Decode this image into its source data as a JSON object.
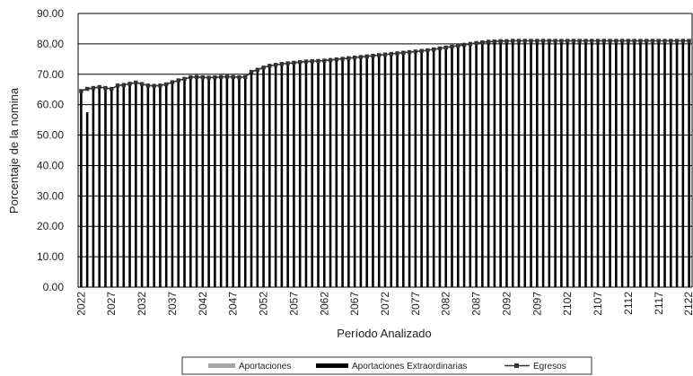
{
  "chart_data": {
    "type": "bar",
    "title": "",
    "xlabel": "Período Analizado",
    "ylabel": "Porcentaje de la nomina",
    "ylim": [
      0,
      90
    ],
    "y_ticks": [
      "0.00",
      "10.00",
      "20.00",
      "30.00",
      "40.00",
      "50.00",
      "60.00",
      "70.00",
      "80.00",
      "90.00"
    ],
    "x_tick_labels": [
      "2022",
      "2027",
      "2032",
      "2037",
      "2042",
      "2047",
      "2052",
      "2057",
      "2062",
      "2067",
      "2072",
      "2077",
      "2082",
      "2087",
      "2092",
      "2097",
      "2102",
      "2107",
      "2112",
      "2117",
      "2122"
    ],
    "x": [
      2022,
      2023,
      2024,
      2025,
      2026,
      2027,
      2028,
      2029,
      2030,
      2031,
      2032,
      2033,
      2034,
      2035,
      2036,
      2037,
      2038,
      2039,
      2040,
      2041,
      2042,
      2043,
      2044,
      2045,
      2046,
      2047,
      2048,
      2049,
      2050,
      2051,
      2052,
      2053,
      2054,
      2055,
      2056,
      2057,
      2058,
      2059,
      2060,
      2061,
      2062,
      2063,
      2064,
      2065,
      2066,
      2067,
      2068,
      2069,
      2070,
      2071,
      2072,
      2073,
      2074,
      2075,
      2076,
      2077,
      2078,
      2079,
      2080,
      2081,
      2082,
      2083,
      2084,
      2085,
      2086,
      2087,
      2088,
      2089,
      2090,
      2091,
      2092,
      2093,
      2094,
      2095,
      2096,
      2097,
      2098,
      2099,
      2100,
      2101,
      2102,
      2103,
      2104,
      2105,
      2106,
      2107,
      2108,
      2109,
      2110,
      2111,
      2112,
      2113,
      2114,
      2115,
      2116,
      2117,
      2118,
      2119,
      2120,
      2121,
      2122
    ],
    "grid": "horizontal",
    "legend_position": "bottom",
    "series": [
      {
        "name": "Aportaciones",
        "kind": "bar",
        "color": "#a6a6a6",
        "values": [
          0,
          0,
          0,
          0,
          0,
          0,
          0,
          0,
          0,
          0,
          0,
          0,
          0,
          0,
          0,
          0,
          0,
          0,
          0,
          0,
          0,
          0,
          0,
          0,
          0,
          0,
          0,
          0,
          0,
          0,
          0,
          0,
          0,
          0,
          0,
          0,
          0,
          0,
          0,
          0,
          0,
          0,
          0,
          0,
          0,
          0,
          0,
          0,
          0,
          0,
          0,
          0,
          0,
          0,
          0,
          0,
          0,
          0,
          0,
          0,
          0,
          0,
          0,
          0,
          0,
          0,
          0,
          0,
          0,
          0,
          0,
          0,
          0,
          0,
          0,
          0,
          0,
          0,
          0,
          0,
          0,
          0,
          0,
          0,
          0,
          0,
          0,
          0,
          0,
          0,
          0,
          0,
          0,
          0,
          0,
          0,
          0,
          0,
          0,
          0,
          0
        ]
      },
      {
        "name": "Aportaciones Extraordinarias",
        "kind": "bar",
        "color": "#000000",
        "values": [
          64.5,
          57.5,
          65.5,
          65.8,
          65.5,
          65.2,
          66.3,
          66.5,
          66.9,
          67.3,
          66.8,
          66.3,
          66.2,
          66.3,
          66.7,
          67.4,
          68.0,
          68.5,
          69.0,
          69.1,
          69.0,
          68.9,
          69.0,
          69.1,
          69.2,
          69.1,
          69.0,
          69.1,
          70.8,
          71.5,
          72.2,
          72.8,
          73.1,
          73.4,
          73.6,
          73.8,
          74.0,
          74.2,
          74.3,
          74.4,
          74.5,
          74.7,
          74.9,
          75.1,
          75.3,
          75.5,
          75.7,
          75.9,
          76.1,
          76.3,
          76.5,
          76.7,
          76.9,
          77.1,
          77.3,
          77.5,
          77.7,
          77.9,
          78.2,
          78.5,
          78.8,
          79.1,
          79.4,
          79.7,
          80.0,
          80.3,
          80.5,
          80.7,
          80.8,
          80.9,
          80.9,
          81.0,
          81.0,
          81.0,
          81.0,
          81.0,
          81.0,
          81.0,
          81.0,
          81.0,
          81.0,
          81.0,
          81.0,
          81.0,
          81.0,
          81.0,
          81.0,
          81.0,
          81.0,
          81.0,
          81.0,
          81.0,
          81.0,
          81.0,
          81.0,
          81.0,
          81.0,
          81.0,
          81.0,
          81.0,
          81.0
        ]
      },
      {
        "name": "Egresos",
        "kind": "line",
        "color": "#333333",
        "values": [
          64.5,
          65.2,
          65.5,
          65.8,
          65.5,
          65.2,
          66.3,
          66.5,
          66.9,
          67.3,
          66.8,
          66.3,
          66.2,
          66.3,
          66.7,
          67.4,
          68.0,
          68.5,
          69.0,
          69.1,
          69.0,
          68.9,
          69.0,
          69.1,
          69.2,
          69.1,
          69.0,
          69.1,
          70.8,
          71.5,
          72.2,
          72.8,
          73.1,
          73.4,
          73.6,
          73.8,
          74.0,
          74.2,
          74.3,
          74.4,
          74.5,
          74.7,
          74.9,
          75.1,
          75.3,
          75.5,
          75.7,
          75.9,
          76.1,
          76.3,
          76.5,
          76.7,
          76.9,
          77.1,
          77.3,
          77.5,
          77.7,
          77.9,
          78.2,
          78.5,
          78.8,
          79.1,
          79.4,
          79.7,
          80.0,
          80.3,
          80.5,
          80.7,
          80.8,
          80.9,
          80.9,
          81.0,
          81.0,
          81.0,
          81.0,
          81.0,
          81.0,
          81.0,
          81.0,
          81.0,
          81.0,
          81.0,
          81.0,
          81.0,
          81.0,
          81.0,
          81.0,
          81.0,
          81.0,
          81.0,
          81.0,
          81.0,
          81.0,
          81.0,
          81.0,
          81.0,
          81.0,
          81.0,
          81.0,
          81.0,
          81.0
        ]
      }
    ]
  }
}
